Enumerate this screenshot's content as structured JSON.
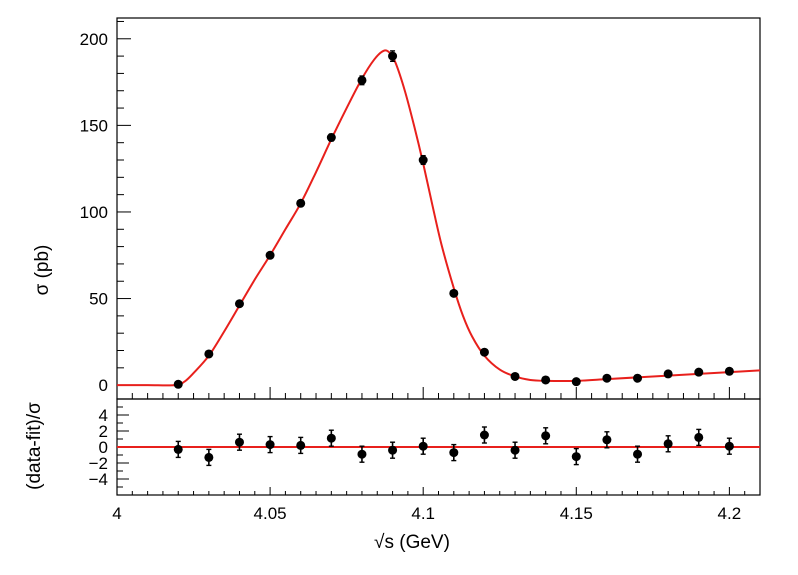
{
  "chart_data": [
    {
      "type": "scatter",
      "title": "",
      "xlabel": "√s (GeV)",
      "ylabel": "σ (pb)",
      "xlim": [
        4.0,
        4.21
      ],
      "ylim": [
        -8,
        212
      ],
      "xticks": [
        4.0,
        4.05,
        4.1,
        4.15,
        4.2
      ],
      "xtick_labels": [
        "4",
        "4.05",
        "4.1",
        "4.15",
        "4.2"
      ],
      "yticks": [
        0,
        50,
        100,
        150,
        200
      ],
      "ytick_labels": [
        "0",
        "50",
        "100",
        "150",
        "200"
      ],
      "series": [
        {
          "name": "data",
          "x": [
            4.02,
            4.03,
            4.04,
            4.05,
            4.06,
            4.07,
            4.08,
            4.09,
            4.1,
            4.11,
            4.12,
            4.13,
            4.14,
            4.15,
            4.16,
            4.17,
            4.18,
            4.19,
            4.2
          ],
          "y": [
            0.5,
            18,
            47,
            75,
            105,
            143,
            176,
            190,
            130,
            53,
            19,
            5,
            3,
            2,
            4,
            4,
            6.5,
            7.5,
            8
          ],
          "yerr": [
            1,
            1.2,
            1.5,
            1.5,
            1.5,
            2,
            2.5,
            3,
            2.5,
            1.5,
            1,
            1,
            0.8,
            0.8,
            0.8,
            0.8,
            1,
            1,
            1
          ]
        },
        {
          "name": "fit",
          "color": "#e8201c",
          "x": [
            4.0,
            4.01,
            4.019,
            4.022,
            4.025,
            4.03,
            4.035,
            4.04,
            4.045,
            4.05,
            4.055,
            4.06,
            4.065,
            4.07,
            4.075,
            4.08,
            4.084,
            4.087,
            4.089,
            4.091,
            4.094,
            4.097,
            4.1,
            4.103,
            4.106,
            4.11,
            4.113,
            4.116,
            4.12,
            4.125,
            4.13,
            4.135,
            4.14,
            4.15,
            4.16,
            4.17,
            4.18,
            4.19,
            4.2,
            4.21
          ],
          "y": [
            0,
            0,
            0,
            2,
            7,
            17,
            31,
            46,
            61,
            75,
            90,
            105,
            123,
            142,
            160,
            177,
            188,
            193,
            192,
            186,
            170,
            150,
            128,
            104,
            81,
            56,
            40,
            28,
            17,
            9,
            5,
            3,
            2.5,
            2.5,
            3.5,
            4.5,
            5.5,
            6.5,
            7.5,
            8.5
          ]
        }
      ]
    },
    {
      "type": "scatter",
      "title": "",
      "xlabel": "√s (GeV)",
      "ylabel": "(data-fit)/σ",
      "xlim": [
        4.0,
        4.21
      ],
      "ylim": [
        -6,
        6
      ],
      "yticks": [
        -4,
        -2,
        0,
        2,
        4
      ],
      "ytick_labels": [
        "−4",
        "−2",
        "0",
        "2",
        "4"
      ],
      "series": [
        {
          "name": "residuals",
          "x": [
            4.02,
            4.03,
            4.04,
            4.05,
            4.06,
            4.07,
            4.08,
            4.09,
            4.1,
            4.11,
            4.12,
            4.13,
            4.14,
            4.15,
            4.16,
            4.17,
            4.18,
            4.19,
            4.2
          ],
          "y": [
            -0.3,
            -1.3,
            0.6,
            0.3,
            0.2,
            1.1,
            -0.9,
            -0.4,
            0.1,
            -0.7,
            1.5,
            -0.4,
            1.4,
            -1.2,
            0.9,
            -0.9,
            0.4,
            1.2,
            0.1
          ],
          "yerr": [
            1,
            1,
            1,
            1,
            1,
            1,
            1,
            1,
            1,
            1,
            1,
            1,
            1,
            1,
            1,
            1,
            1,
            1,
            1
          ]
        },
        {
          "name": "zero-line",
          "color": "#e8201c",
          "x": [
            4.0,
            4.21
          ],
          "y": [
            0,
            0
          ]
        }
      ]
    }
  ]
}
